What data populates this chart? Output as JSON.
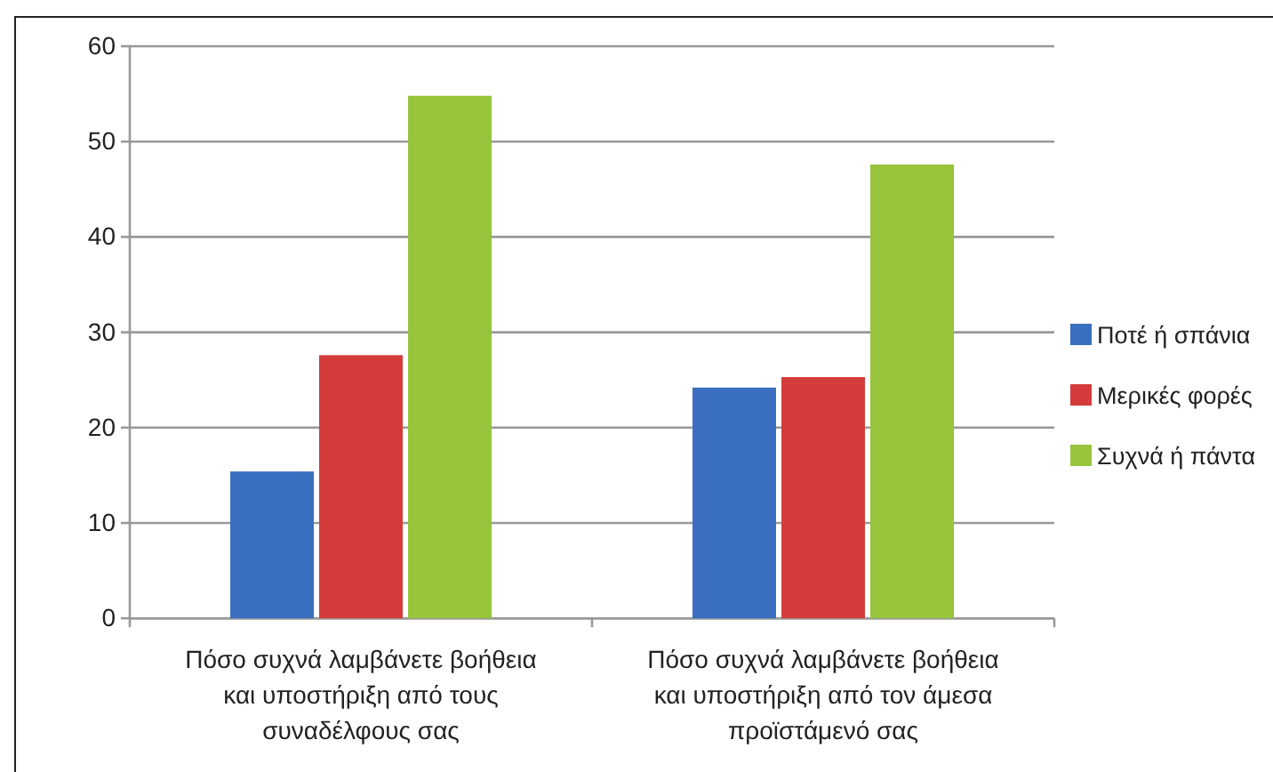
{
  "chart_data": {
    "type": "bar",
    "categories": [
      "Πόσο συχνά λαμβάνετε βοήθεια και υποστήριξη από τους συναδέλφους σας",
      "Πόσο συχνά λαμβάνετε βοήθεια και υποστήριξη από τον άμεσα προϊστάμενό σας"
    ],
    "series": [
      {
        "name": "Ποτέ ή σπάνια",
        "color": "#3a6fc0",
        "values": [
          15.4,
          24.2
        ]
      },
      {
        "name": "Μερικές φορές",
        "color": "#d63b3b",
        "values": [
          27.6,
          25.3
        ]
      },
      {
        "name": "Συχνά ή πάντα",
        "color": "#98c43c",
        "values": [
          54.8,
          47.6
        ]
      }
    ],
    "ylim": [
      0,
      60
    ],
    "yticks": [
      0,
      10,
      20,
      30,
      40,
      50,
      60
    ],
    "grid": "y",
    "legend": "right"
  }
}
